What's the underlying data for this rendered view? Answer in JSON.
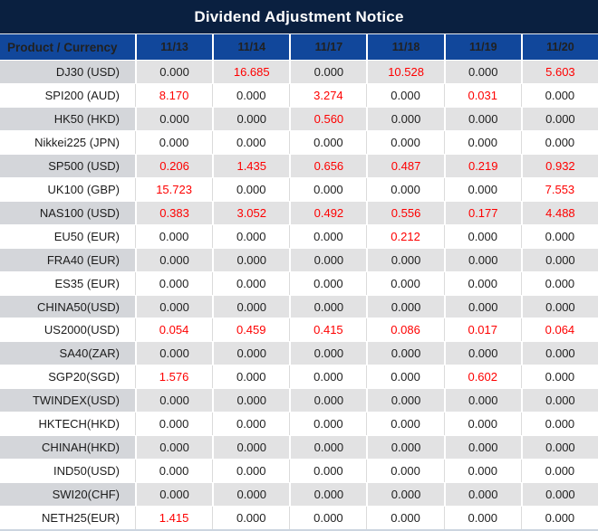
{
  "title": "Dividend Adjustment Notice",
  "table": {
    "header": {
      "product_label": "Product / Currency",
      "dates": [
        "11/13",
        "11/14",
        "11/17",
        "11/18",
        "11/19",
        "11/20"
      ]
    },
    "rows": [
      {
        "product": "DJ30 (USD)",
        "values": [
          "0.000",
          "16.685",
          "0.000",
          "10.528",
          "0.000",
          "5.603"
        ]
      },
      {
        "product": "SPI200 (AUD)",
        "values": [
          "8.170",
          "0.000",
          "3.274",
          "0.000",
          "0.031",
          "0.000"
        ]
      },
      {
        "product": "HK50 (HKD)",
        "values": [
          "0.000",
          "0.000",
          "0.560",
          "0.000",
          "0.000",
          "0.000"
        ]
      },
      {
        "product": "Nikkei225 (JPN)",
        "values": [
          "0.000",
          "0.000",
          "0.000",
          "0.000",
          "0.000",
          "0.000"
        ]
      },
      {
        "product": "SP500 (USD)",
        "values": [
          "0.206",
          "1.435",
          "0.656",
          "0.487",
          "0.219",
          "0.932"
        ]
      },
      {
        "product": "UK100 (GBP)",
        "values": [
          "15.723",
          "0.000",
          "0.000",
          "0.000",
          "0.000",
          "7.553"
        ]
      },
      {
        "product": "NAS100 (USD)",
        "values": [
          "0.383",
          "3.052",
          "0.492",
          "0.556",
          "0.177",
          "4.488"
        ]
      },
      {
        "product": "EU50 (EUR)",
        "values": [
          "0.000",
          "0.000",
          "0.000",
          "0.212",
          "0.000",
          "0.000"
        ]
      },
      {
        "product": "FRA40 (EUR)",
        "values": [
          "0.000",
          "0.000",
          "0.000",
          "0.000",
          "0.000",
          "0.000"
        ]
      },
      {
        "product": "ES35 (EUR)",
        "values": [
          "0.000",
          "0.000",
          "0.000",
          "0.000",
          "0.000",
          "0.000"
        ]
      },
      {
        "product": "CHINA50(USD)",
        "values": [
          "0.000",
          "0.000",
          "0.000",
          "0.000",
          "0.000",
          "0.000"
        ]
      },
      {
        "product": "US2000(USD)",
        "values": [
          "0.054",
          "0.459",
          "0.415",
          "0.086",
          "0.017",
          "0.064"
        ]
      },
      {
        "product": "SA40(ZAR)",
        "values": [
          "0.000",
          "0.000",
          "0.000",
          "0.000",
          "0.000",
          "0.000"
        ]
      },
      {
        "product": "SGP20(SGD)",
        "values": [
          "1.576",
          "0.000",
          "0.000",
          "0.000",
          "0.602",
          "0.000"
        ]
      },
      {
        "product": "TWINDEX(USD)",
        "values": [
          "0.000",
          "0.000",
          "0.000",
          "0.000",
          "0.000",
          "0.000"
        ]
      },
      {
        "product": "HKTECH(HKD)",
        "values": [
          "0.000",
          "0.000",
          "0.000",
          "0.000",
          "0.000",
          "0.000"
        ]
      },
      {
        "product": "CHINAH(HKD)",
        "values": [
          "0.000",
          "0.000",
          "0.000",
          "0.000",
          "0.000",
          "0.000"
        ]
      },
      {
        "product": "IND50(USD)",
        "values": [
          "0.000",
          "0.000",
          "0.000",
          "0.000",
          "0.000",
          "0.000"
        ]
      },
      {
        "product": "SWI20(CHF)",
        "values": [
          "0.000",
          "0.000",
          "0.000",
          "0.000",
          "0.000",
          "0.000"
        ]
      },
      {
        "product": "NETH25(EUR)",
        "values": [
          "1.415",
          "0.000",
          "0.000",
          "0.000",
          "0.000",
          "0.000"
        ]
      }
    ]
  },
  "colors": {
    "title-bg": "#0a2040",
    "header-bg": "#11479b",
    "header-text": "#ffffff",
    "stripe-product-bg": "#d4d6da",
    "stripe-value-bg": "#e2e2e3",
    "row-bg": "#ffffff",
    "zero-text": "#212121",
    "nonzero-text": "#fe0000"
  }
}
